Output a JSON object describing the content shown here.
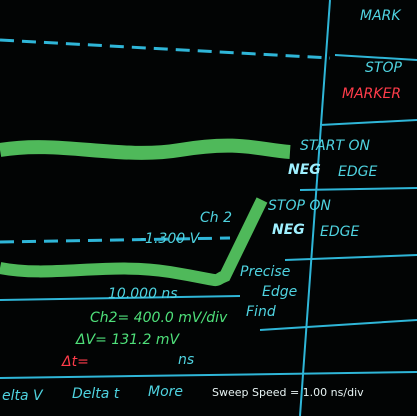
{
  "header": {
    "marker": "MARK"
  },
  "menu": {
    "stop_marker": [
      "STOP",
      "MARKER"
    ],
    "start_on": [
      "START ON",
      "NEG",
      "EDGE"
    ],
    "stop_on": [
      "STOP ON",
      "NEG",
      "EDGE"
    ],
    "precise": [
      "Precise",
      "Edge",
      "Find"
    ]
  },
  "trace": {
    "channel": "Ch 2",
    "level": "-1.300 V",
    "time": "10.000 ns"
  },
  "readout": {
    "scale": "Ch2= 400.0 mV/div",
    "delta_v": "ΔV= 131.2 mV",
    "delta_t": "Δt=",
    "delta_t_unit": "ns"
  },
  "softkeys": [
    "elta V",
    "Delta t",
    "More"
  ],
  "status": "Sweep Speed = 1.00 ns/div"
}
